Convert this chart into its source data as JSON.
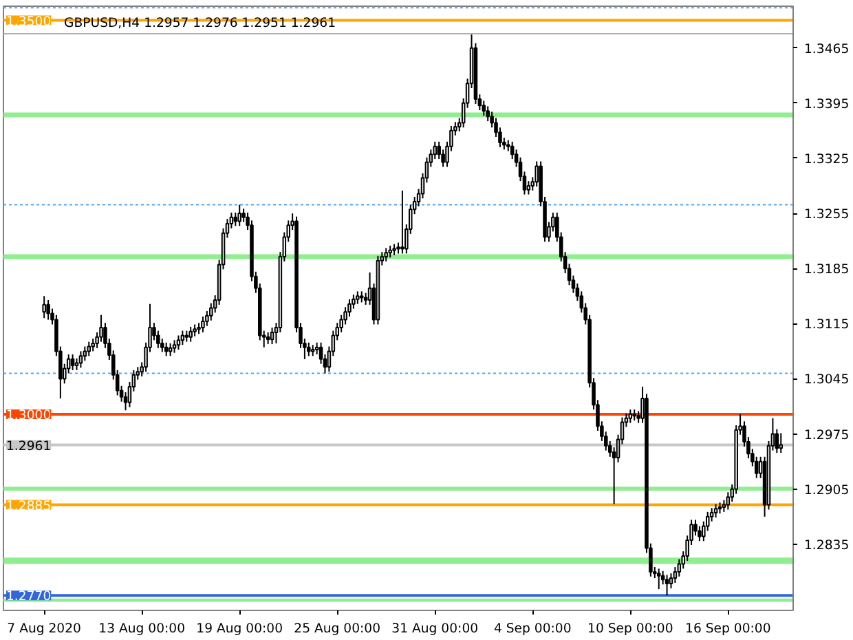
{
  "chart_data": {
    "type": "candlestick",
    "title": "GBPUSD,H4  1.2957 1.2976 1.2951 1.2961",
    "color": "#000000",
    "categories": [
      "7 Aug 2020",
      null,
      null,
      null,
      null,
      null,
      null,
      null,
      null,
      null,
      null,
      null,
      null,
      null,
      null,
      null,
      null,
      null,
      null,
      null,
      null,
      null,
      null,
      null,
      "13 Aug 00:00",
      null,
      null,
      null,
      null,
      null,
      null,
      null,
      null,
      null,
      null,
      null,
      null,
      null,
      null,
      null,
      null,
      null,
      null,
      null,
      null,
      null,
      null,
      null,
      "19 Aug 00:00",
      null,
      null,
      null,
      null,
      null,
      null,
      null,
      null,
      null,
      null,
      null,
      null,
      null,
      null,
      null,
      null,
      null,
      null,
      null,
      null,
      null,
      null,
      null,
      "25 Aug 00:00",
      null,
      null,
      null,
      null,
      null,
      null,
      null,
      null,
      null,
      null,
      null,
      null,
      null,
      null,
      null,
      null,
      null,
      null,
      null,
      null,
      null,
      null,
      null,
      "31 Aug 00:00",
      null,
      null,
      null,
      null,
      null,
      null,
      null,
      null,
      null,
      null,
      null,
      null,
      null,
      null,
      null,
      null,
      null,
      null,
      null,
      null,
      null,
      null,
      null,
      "4 Sep 00:00",
      null,
      null,
      null,
      null,
      null,
      null,
      null,
      null,
      null,
      null,
      null,
      null,
      null,
      null,
      null,
      null,
      null,
      null,
      null,
      null,
      null,
      null,
      null,
      "10 Sep 00:00",
      null,
      null,
      null,
      null,
      null,
      null,
      null,
      null,
      null,
      null,
      null,
      null,
      null,
      null,
      null,
      null,
      null,
      null,
      null,
      null,
      null,
      null,
      null,
      "16 Sep 00:00",
      null,
      null,
      null,
      null,
      null,
      null,
      null,
      null,
      null,
      null,
      null,
      null,
      null
    ],
    "ohlc": [
      [
        1.313,
        1.315,
        1.3122,
        1.3139
      ],
      [
        1.3139,
        1.3145,
        1.312,
        1.3128
      ],
      [
        1.3128,
        1.3134,
        1.3114,
        1.312
      ],
      [
        1.312,
        1.3126,
        1.3074,
        1.308
      ],
      [
        1.308,
        1.3086,
        1.302,
        1.3045
      ],
      [
        1.3045,
        1.3064,
        1.3039,
        1.3058
      ],
      [
        1.3058,
        1.3076,
        1.3052,
        1.307
      ],
      [
        1.307,
        1.3076,
        1.3056,
        1.3062
      ],
      [
        1.3062,
        1.3071,
        1.3056,
        1.3065
      ],
      [
        1.3065,
        1.308,
        1.3059,
        1.3074
      ],
      [
        1.3074,
        1.3086,
        1.3068,
        1.308
      ],
      [
        1.308,
        1.3092,
        1.3074,
        1.3086
      ],
      [
        1.3086,
        1.3096,
        1.308,
        1.309
      ],
      [
        1.309,
        1.3104,
        1.3084,
        1.3098
      ],
      [
        1.3098,
        1.3126,
        1.3092,
        1.311
      ],
      [
        1.311,
        1.3116,
        1.3084,
        1.309
      ],
      [
        1.309,
        1.3096,
        1.3069,
        1.3075
      ],
      [
        1.3075,
        1.3081,
        1.3044,
        1.305
      ],
      [
        1.305,
        1.3056,
        1.3024,
        1.303
      ],
      [
        1.303,
        1.3036,
        1.3016,
        1.3022
      ],
      [
        1.3022,
        1.3028,
        1.3005,
        1.3015
      ],
      [
        1.3015,
        1.3041,
        1.3009,
        1.3035
      ],
      [
        1.3035,
        1.3056,
        1.3029,
        1.305
      ],
      [
        1.305,
        1.306,
        1.3044,
        1.3054
      ],
      [
        1.3054,
        1.3066,
        1.3048,
        1.306
      ],
      [
        1.306,
        1.3091,
        1.3054,
        1.3085
      ],
      [
        1.3085,
        1.314,
        1.3079,
        1.311
      ],
      [
        1.311,
        1.3116,
        1.3094,
        1.31
      ],
      [
        1.31,
        1.3106,
        1.3084,
        1.309
      ],
      [
        1.309,
        1.3096,
        1.3079,
        1.3085
      ],
      [
        1.3085,
        1.3091,
        1.3074,
        1.308
      ],
      [
        1.308,
        1.309,
        1.3074,
        1.3084
      ],
      [
        1.3084,
        1.3094,
        1.3078,
        1.3088
      ],
      [
        1.3088,
        1.31,
        1.3082,
        1.3094
      ],
      [
        1.3094,
        1.3106,
        1.3088,
        1.31
      ],
      [
        1.31,
        1.3106,
        1.3092,
        1.3098
      ],
      [
        1.3098,
        1.3111,
        1.3092,
        1.3105
      ],
      [
        1.3105,
        1.3114,
        1.3099,
        1.3108
      ],
      [
        1.3108,
        1.3116,
        1.3102,
        1.311
      ],
      [
        1.311,
        1.3124,
        1.3104,
        1.3118
      ],
      [
        1.3118,
        1.3131,
        1.3112,
        1.3125
      ],
      [
        1.3125,
        1.3141,
        1.3119,
        1.3135
      ],
      [
        1.3135,
        1.3151,
        1.3129,
        1.3145
      ],
      [
        1.3145,
        1.3196,
        1.3139,
        1.319
      ],
      [
        1.319,
        1.3236,
        1.3184,
        1.323
      ],
      [
        1.323,
        1.3248,
        1.3224,
        1.3242
      ],
      [
        1.3242,
        1.3256,
        1.3236,
        1.325
      ],
      [
        1.325,
        1.3256,
        1.3239,
        1.3245
      ],
      [
        1.3245,
        1.3266,
        1.3239,
        1.3255
      ],
      [
        1.3255,
        1.3261,
        1.3244,
        1.325
      ],
      [
        1.325,
        1.3256,
        1.3234,
        1.324
      ],
      [
        1.324,
        1.3246,
        1.3169,
        1.3175
      ],
      [
        1.3175,
        1.3181,
        1.3154,
        1.316
      ],
      [
        1.316,
        1.3166,
        1.3094,
        1.31
      ],
      [
        1.31,
        1.3106,
        1.3085,
        1.3098
      ],
      [
        1.3098,
        1.3104,
        1.3089,
        1.3095
      ],
      [
        1.3095,
        1.311,
        1.3089,
        1.3104
      ],
      [
        1.3104,
        1.3116,
        1.309,
        1.311
      ],
      [
        1.311,
        1.3206,
        1.3104,
        1.32
      ],
      [
        1.32,
        1.3231,
        1.3194,
        1.3225
      ],
      [
        1.3225,
        1.3246,
        1.3219,
        1.324
      ],
      [
        1.324,
        1.3255,
        1.3234,
        1.3245
      ],
      [
        1.3245,
        1.3251,
        1.3104,
        1.311
      ],
      [
        1.311,
        1.3116,
        1.3084,
        1.309
      ],
      [
        1.309,
        1.3096,
        1.307,
        1.3085
      ],
      [
        1.3085,
        1.3091,
        1.3074,
        1.308
      ],
      [
        1.308,
        1.3088,
        1.3074,
        1.3082
      ],
      [
        1.3082,
        1.3091,
        1.3076,
        1.3085
      ],
      [
        1.3085,
        1.3091,
        1.3064,
        1.307
      ],
      [
        1.307,
        1.3076,
        1.3052,
        1.306
      ],
      [
        1.306,
        1.3086,
        1.3054,
        1.308
      ],
      [
        1.308,
        1.3106,
        1.3074,
        1.31
      ],
      [
        1.31,
        1.3116,
        1.3094,
        1.311
      ],
      [
        1.311,
        1.3126,
        1.3104,
        1.312
      ],
      [
        1.312,
        1.3136,
        1.3114,
        1.313
      ],
      [
        1.313,
        1.3146,
        1.3124,
        1.314
      ],
      [
        1.314,
        1.3152,
        1.3134,
        1.3146
      ],
      [
        1.3146,
        1.3156,
        1.314,
        1.315
      ],
      [
        1.315,
        1.3156,
        1.3142,
        1.3148
      ],
      [
        1.3148,
        1.3154,
        1.3139,
        1.3145
      ],
      [
        1.3145,
        1.318,
        1.3139,
        1.316
      ],
      [
        1.316,
        1.3166,
        1.3114,
        1.312
      ],
      [
        1.312,
        1.3201,
        1.3114,
        1.3195
      ],
      [
        1.3195,
        1.3206,
        1.3189,
        1.32
      ],
      [
        1.32,
        1.3211,
        1.3194,
        1.3205
      ],
      [
        1.3205,
        1.3214,
        1.3199,
        1.3208
      ],
      [
        1.3208,
        1.3216,
        1.3202,
        1.321
      ],
      [
        1.321,
        1.3218,
        1.3204,
        1.3212
      ],
      [
        1.3212,
        1.3284,
        1.3204,
        1.321
      ],
      [
        1.321,
        1.3241,
        1.3204,
        1.3235
      ],
      [
        1.3235,
        1.3266,
        1.3229,
        1.326
      ],
      [
        1.326,
        1.3276,
        1.3254,
        1.327
      ],
      [
        1.327,
        1.3286,
        1.3264,
        1.328
      ],
      [
        1.328,
        1.3306,
        1.3274,
        1.33
      ],
      [
        1.33,
        1.3326,
        1.3294,
        1.332
      ],
      [
        1.332,
        1.3336,
        1.3314,
        1.333
      ],
      [
        1.333,
        1.3346,
        1.3324,
        1.334
      ],
      [
        1.334,
        1.3346,
        1.3324,
        1.333
      ],
      [
        1.333,
        1.3336,
        1.3314,
        1.332
      ],
      [
        1.332,
        1.3346,
        1.3314,
        1.334
      ],
      [
        1.334,
        1.3366,
        1.3334,
        1.336
      ],
      [
        1.336,
        1.3371,
        1.3354,
        1.3365
      ],
      [
        1.3365,
        1.3376,
        1.3359,
        1.337
      ],
      [
        1.337,
        1.3401,
        1.3364,
        1.3395
      ],
      [
        1.3395,
        1.3426,
        1.3389,
        1.342
      ],
      [
        1.342,
        1.3482,
        1.3414,
        1.3465
      ],
      [
        1.3465,
        1.3471,
        1.3394,
        1.34
      ],
      [
        1.34,
        1.3406,
        1.3386,
        1.3392
      ],
      [
        1.3392,
        1.3398,
        1.3379,
        1.3385
      ],
      [
        1.3385,
        1.3391,
        1.3372,
        1.3378
      ],
      [
        1.3378,
        1.3384,
        1.3364,
        1.337
      ],
      [
        1.337,
        1.3376,
        1.3352,
        1.3358
      ],
      [
        1.3358,
        1.3364,
        1.3339,
        1.3345
      ],
      [
        1.3345,
        1.3351,
        1.3336,
        1.3342
      ],
      [
        1.3342,
        1.3348,
        1.3334,
        1.334
      ],
      [
        1.334,
        1.3346,
        1.3324,
        1.333
      ],
      [
        1.333,
        1.3336,
        1.3314,
        1.332
      ],
      [
        1.332,
        1.3326,
        1.3296,
        1.3302
      ],
      [
        1.3302,
        1.3308,
        1.3279,
        1.3285
      ],
      [
        1.3285,
        1.3296,
        1.3279,
        1.329
      ],
      [
        1.329,
        1.3301,
        1.3284,
        1.3295
      ],
      [
        1.3295,
        1.3321,
        1.3289,
        1.3315
      ],
      [
        1.3315,
        1.3321,
        1.3264,
        1.327
      ],
      [
        1.327,
        1.3276,
        1.3219,
        1.3225
      ],
      [
        1.3225,
        1.3244,
        1.3219,
        1.3238
      ],
      [
        1.3238,
        1.3256,
        1.3232,
        1.325
      ],
      [
        1.325,
        1.3256,
        1.3219,
        1.3225
      ],
      [
        1.3225,
        1.3231,
        1.3194,
        1.32
      ],
      [
        1.32,
        1.3206,
        1.3179,
        1.3185
      ],
      [
        1.3185,
        1.3191,
        1.3164,
        1.317
      ],
      [
        1.317,
        1.3176,
        1.3154,
        1.316
      ],
      [
        1.316,
        1.3166,
        1.3144,
        1.315
      ],
      [
        1.315,
        1.3156,
        1.3129,
        1.3135
      ],
      [
        1.3135,
        1.3141,
        1.3114,
        1.312
      ],
      [
        1.312,
        1.3126,
        1.3034,
        1.304
      ],
      [
        1.304,
        1.3046,
        1.3006,
        1.3012
      ],
      [
        1.3012,
        1.3018,
        1.2979,
        1.2985
      ],
      [
        1.2985,
        1.2991,
        1.2966,
        1.2972
      ],
      [
        1.2972,
        1.2978,
        1.2954,
        1.296
      ],
      [
        1.296,
        1.2966,
        1.2946,
        1.2952
      ],
      [
        1.2952,
        1.2958,
        1.2886,
        1.2945
      ],
      [
        1.2945,
        1.2974,
        1.2939,
        1.2968
      ],
      [
        1.2968,
        1.2996,
        1.2962,
        1.299
      ],
      [
        1.299,
        1.3001,
        1.2984,
        1.2995
      ],
      [
        1.2995,
        1.3006,
        1.2989,
        1.3
      ],
      [
        1.3,
        1.3006,
        1.2992,
        1.2998
      ],
      [
        1.2998,
        1.3004,
        1.2989,
        1.2995
      ],
      [
        1.2995,
        1.3035,
        1.2989,
        1.302
      ],
      [
        1.302,
        1.3026,
        1.2824,
        1.283
      ],
      [
        1.283,
        1.2836,
        1.2794,
        1.28
      ],
      [
        1.28,
        1.2806,
        1.2792,
        1.2798
      ],
      [
        1.2798,
        1.2804,
        1.2778,
        1.2795
      ],
      [
        1.2795,
        1.2801,
        1.2784,
        1.279
      ],
      [
        1.279,
        1.2796,
        1.277,
        1.2785
      ],
      [
        1.2785,
        1.2798,
        1.2779,
        1.2792
      ],
      [
        1.2792,
        1.2806,
        1.2786,
        1.28
      ],
      [
        1.28,
        1.2816,
        1.2794,
        1.281
      ],
      [
        1.281,
        1.2826,
        1.2804,
        1.282
      ],
      [
        1.282,
        1.2846,
        1.2814,
        1.284
      ],
      [
        1.284,
        1.2866,
        1.2834,
        1.286
      ],
      [
        1.286,
        1.2866,
        1.2846,
        1.2852
      ],
      [
        1.2852,
        1.2858,
        1.2839,
        1.2845
      ],
      [
        1.2845,
        1.2864,
        1.2839,
        1.2858
      ],
      [
        1.2858,
        1.2876,
        1.2852,
        1.287
      ],
      [
        1.287,
        1.2881,
        1.2864,
        1.2875
      ],
      [
        1.2875,
        1.2886,
        1.2869,
        1.288
      ],
      [
        1.288,
        1.2888,
        1.2874,
        1.2882
      ],
      [
        1.2882,
        1.2891,
        1.2876,
        1.2885
      ],
      [
        1.2885,
        1.2901,
        1.2879,
        1.2895
      ],
      [
        1.2895,
        1.2911,
        1.2889,
        1.2905
      ],
      [
        1.2905,
        1.2986,
        1.2899,
        1.298
      ],
      [
        1.298,
        1.3,
        1.2974,
        1.2985
      ],
      [
        1.2985,
        1.2991,
        1.2959,
        1.2965
      ],
      [
        1.2965,
        1.2971,
        1.2944,
        1.295
      ],
      [
        1.295,
        1.2956,
        1.2934,
        1.294
      ],
      [
        1.294,
        1.2946,
        1.2919,
        1.2925
      ],
      [
        1.2925,
        1.2946,
        1.2919,
        1.294
      ],
      [
        1.294,
        1.2946,
        1.287,
        1.2885
      ],
      [
        1.2885,
        1.2966,
        1.2879,
        1.296
      ],
      [
        1.296,
        1.2995,
        1.2954,
        1.2975
      ],
      [
        1.2975,
        1.2981,
        1.2951,
        1.2957
      ],
      [
        1.2957,
        1.2976,
        1.2951,
        1.2961
      ]
    ],
    "ylim": [
      1.2751,
      1.3518
    ],
    "yticks": [
      1.2835,
      1.2905,
      1.2975,
      1.3045,
      1.3115,
      1.3185,
      1.3255,
      1.3325,
      1.3395,
      1.3465
    ],
    "grid": false,
    "bands": [
      {
        "axis": "y",
        "from": 1.3377,
        "to": 1.3383,
        "color": "#90ee90"
      },
      {
        "axis": "y",
        "from": 1.3197,
        "to": 1.3203,
        "color": "#90ee90"
      },
      {
        "axis": "y",
        "from": 1.2903,
        "to": 1.2908,
        "color": "#90ee90"
      },
      {
        "axis": "y",
        "from": 1.281,
        "to": 1.2818,
        "color": "#90ee90"
      },
      {
        "axis": "y",
        "from": 1.2762,
        "to": 1.2766,
        "color": "#90ee90"
      }
    ],
    "ref_lines": [
      {
        "axis": "y",
        "value": 1.3516,
        "color": "#4da6ff",
        "line_style": "dotted"
      },
      {
        "axis": "y",
        "value": 1.3266,
        "color": "#4da6ff",
        "line_style": "dotted"
      },
      {
        "axis": "y",
        "value": 1.3052,
        "color": "#4da6ff",
        "line_style": "dotted"
      },
      {
        "axis": "y",
        "value": 1.3483,
        "color": "#b0b0b0",
        "line_style": "solid"
      },
      {
        "axis": "y",
        "value": 1.2961,
        "label": "1.2961",
        "color": "#c8c8c8",
        "line_style": "solid"
      },
      {
        "axis": "y",
        "value": 1.35,
        "label": "1.3500",
        "color": "#ffa500",
        "line_style": "solid"
      },
      {
        "axis": "y",
        "value": 1.3,
        "label": "1.3000",
        "color": "#ff4500",
        "line_style": "solid"
      },
      {
        "axis": "y",
        "value": 1.2885,
        "label": "1.2885",
        "color": "#ffa500",
        "line_style": "solid"
      },
      {
        "axis": "y",
        "value": 1.277,
        "label": "1.2770",
        "color": "#3366dd",
        "line_style": "solid"
      }
    ]
  }
}
